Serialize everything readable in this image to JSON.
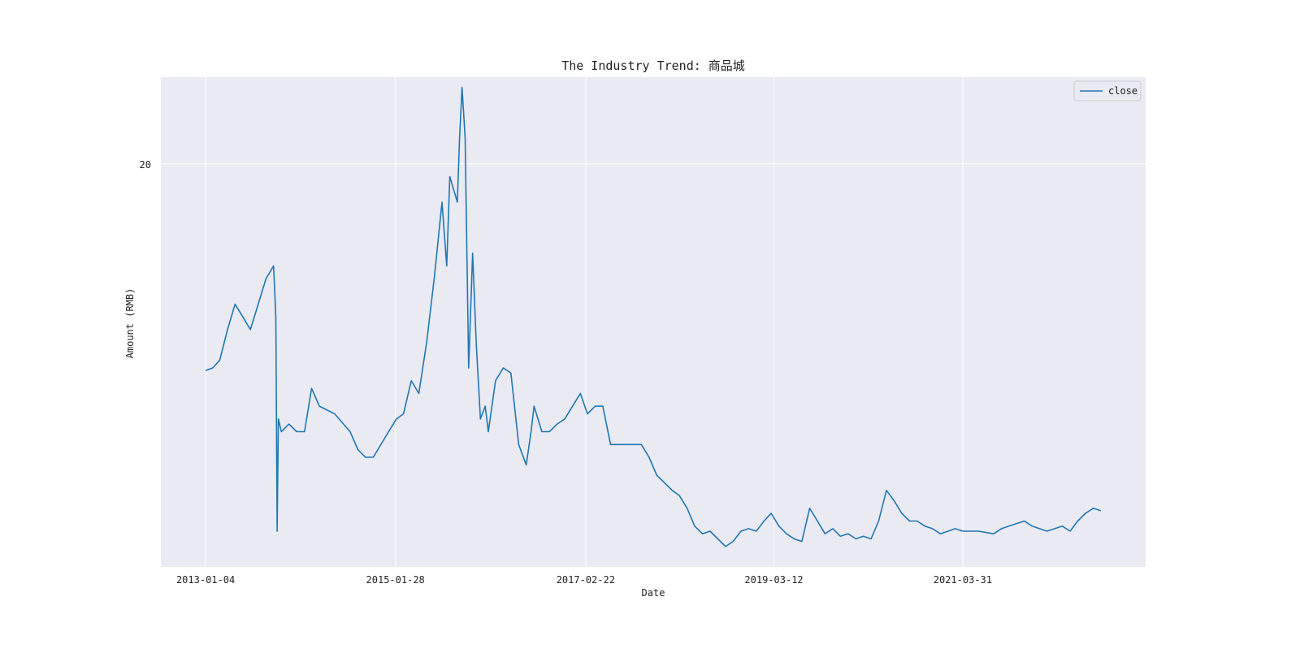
{
  "chart_data": {
    "type": "line",
    "title": "The Industry Trend: 商品城",
    "xlabel": "Date",
    "ylabel": "Amount (RMB)",
    "x_tick_labels": [
      "2013-01-04",
      "2015-01-28",
      "2017-02-22",
      "2019-03-12",
      "2021-03-31"
    ],
    "y_tick_values": [
      20
    ],
    "ylim": [
      4.2,
      23.4
    ],
    "grid": true,
    "legend_position": "top-right",
    "colors": {
      "series": "#1f77b4",
      "plot_background": "#eaeaf2",
      "grid": "#ffffff"
    },
    "series": [
      {
        "name": "close",
        "points": [
          [
            "2013-01-04",
            11.9
          ],
          [
            "2013-02-01",
            12.0
          ],
          [
            "2013-03-01",
            12.3
          ],
          [
            "2013-04-01",
            13.5
          ],
          [
            "2013-05-01",
            14.5
          ],
          [
            "2013-06-01",
            14.0
          ],
          [
            "2013-07-01",
            13.5
          ],
          [
            "2013-08-01",
            14.5
          ],
          [
            "2013-09-01",
            15.5
          ],
          [
            "2013-10-01",
            16.0
          ],
          [
            "2013-10-10",
            14.0
          ],
          [
            "2013-10-15",
            5.6
          ],
          [
            "2013-10-20",
            10.0
          ],
          [
            "2013-11-01",
            9.5
          ],
          [
            "2013-12-01",
            9.8
          ],
          [
            "2014-01-01",
            9.5
          ],
          [
            "2014-02-01",
            9.5
          ],
          [
            "2014-03-01",
            11.2
          ],
          [
            "2014-04-01",
            10.5
          ],
          [
            "2014-06-01",
            10.2
          ],
          [
            "2014-08-01",
            9.5
          ],
          [
            "2014-09-01",
            8.8
          ],
          [
            "2014-10-01",
            8.5
          ],
          [
            "2014-11-01",
            8.5
          ],
          [
            "2015-01-01",
            9.5
          ],
          [
            "2015-02-01",
            10.0
          ],
          [
            "2015-03-01",
            10.2
          ],
          [
            "2015-04-01",
            11.5
          ],
          [
            "2015-05-01",
            11.0
          ],
          [
            "2015-06-01",
            13.0
          ],
          [
            "2015-07-01",
            15.5
          ],
          [
            "2015-08-01",
            18.5
          ],
          [
            "2015-08-20",
            16.0
          ],
          [
            "2015-09-01",
            19.5
          ],
          [
            "2015-10-01",
            18.5
          ],
          [
            "2015-10-10",
            21.0
          ],
          [
            "2015-10-20",
            23.0
          ],
          [
            "2015-11-01",
            21.0
          ],
          [
            "2015-11-15",
            12.0
          ],
          [
            "2015-12-01",
            16.5
          ],
          [
            "2015-12-15",
            13.0
          ],
          [
            "2016-01-01",
            10.0
          ],
          [
            "2016-01-20",
            10.5
          ],
          [
            "2016-02-01",
            9.5
          ],
          [
            "2016-03-01",
            11.5
          ],
          [
            "2016-04-01",
            12.0
          ],
          [
            "2016-05-01",
            11.8
          ],
          [
            "2016-06-01",
            9.0
          ],
          [
            "2016-07-01",
            8.2
          ],
          [
            "2016-07-20",
            9.5
          ],
          [
            "2016-08-01",
            10.5
          ],
          [
            "2016-09-01",
            9.5
          ],
          [
            "2016-10-01",
            9.5
          ],
          [
            "2016-11-01",
            9.8
          ],
          [
            "2016-12-01",
            10.0
          ],
          [
            "2017-01-01",
            10.5
          ],
          [
            "2017-02-01",
            11.0
          ],
          [
            "2017-03-01",
            10.2
          ],
          [
            "2017-04-01",
            10.5
          ],
          [
            "2017-05-01",
            10.5
          ],
          [
            "2017-06-01",
            9.0
          ],
          [
            "2017-07-01",
            9.0
          ],
          [
            "2017-08-01",
            9.0
          ],
          [
            "2017-10-01",
            9.0
          ],
          [
            "2017-11-01",
            8.5
          ],
          [
            "2017-12-01",
            7.8
          ],
          [
            "2018-01-01",
            7.5
          ],
          [
            "2018-02-01",
            7.2
          ],
          [
            "2018-03-01",
            7.0
          ],
          [
            "2018-04-01",
            6.5
          ],
          [
            "2018-05-01",
            5.8
          ],
          [
            "2018-06-01",
            5.5
          ],
          [
            "2018-07-01",
            5.6
          ],
          [
            "2018-08-01",
            5.3
          ],
          [
            "2018-09-01",
            5.0
          ],
          [
            "2018-10-01",
            5.2
          ],
          [
            "2018-11-01",
            5.6
          ],
          [
            "2018-12-01",
            5.7
          ],
          [
            "2019-01-01",
            5.6
          ],
          [
            "2019-02-01",
            6.0
          ],
          [
            "2019-03-01",
            6.3
          ],
          [
            "2019-04-01",
            5.8
          ],
          [
            "2019-05-01",
            5.5
          ],
          [
            "2019-06-01",
            5.3
          ],
          [
            "2019-07-01",
            5.2
          ],
          [
            "2019-08-01",
            6.5
          ],
          [
            "2019-09-01",
            6.0
          ],
          [
            "2019-10-01",
            5.5
          ],
          [
            "2019-11-01",
            5.7
          ],
          [
            "2019-12-01",
            5.4
          ],
          [
            "2020-01-01",
            5.5
          ],
          [
            "2020-02-01",
            5.3
          ],
          [
            "2020-03-01",
            5.4
          ],
          [
            "2020-04-01",
            5.3
          ],
          [
            "2020-05-01",
            6.0
          ],
          [
            "2020-06-01",
            7.2
          ],
          [
            "2020-07-01",
            6.8
          ],
          [
            "2020-08-01",
            6.3
          ],
          [
            "2020-09-01",
            6.0
          ],
          [
            "2020-10-01",
            6.0
          ],
          [
            "2020-11-01",
            5.8
          ],
          [
            "2020-12-01",
            5.7
          ],
          [
            "2021-01-01",
            5.5
          ],
          [
            "2021-02-01",
            5.6
          ],
          [
            "2021-03-01",
            5.7
          ],
          [
            "2021-04-01",
            5.6
          ],
          [
            "2021-06-01",
            5.6
          ],
          [
            "2021-08-01",
            5.5
          ],
          [
            "2021-09-01",
            5.7
          ],
          [
            "2021-10-01",
            5.8
          ],
          [
            "2021-12-01",
            6.0
          ],
          [
            "2022-01-01",
            5.8
          ],
          [
            "2022-03-01",
            5.6
          ],
          [
            "2022-05-01",
            5.8
          ],
          [
            "2022-06-01",
            5.6
          ],
          [
            "2022-07-01",
            6.0
          ],
          [
            "2022-08-01",
            6.3
          ],
          [
            "2022-09-01",
            6.5
          ],
          [
            "2022-10-01",
            6.4
          ]
        ]
      }
    ]
  }
}
